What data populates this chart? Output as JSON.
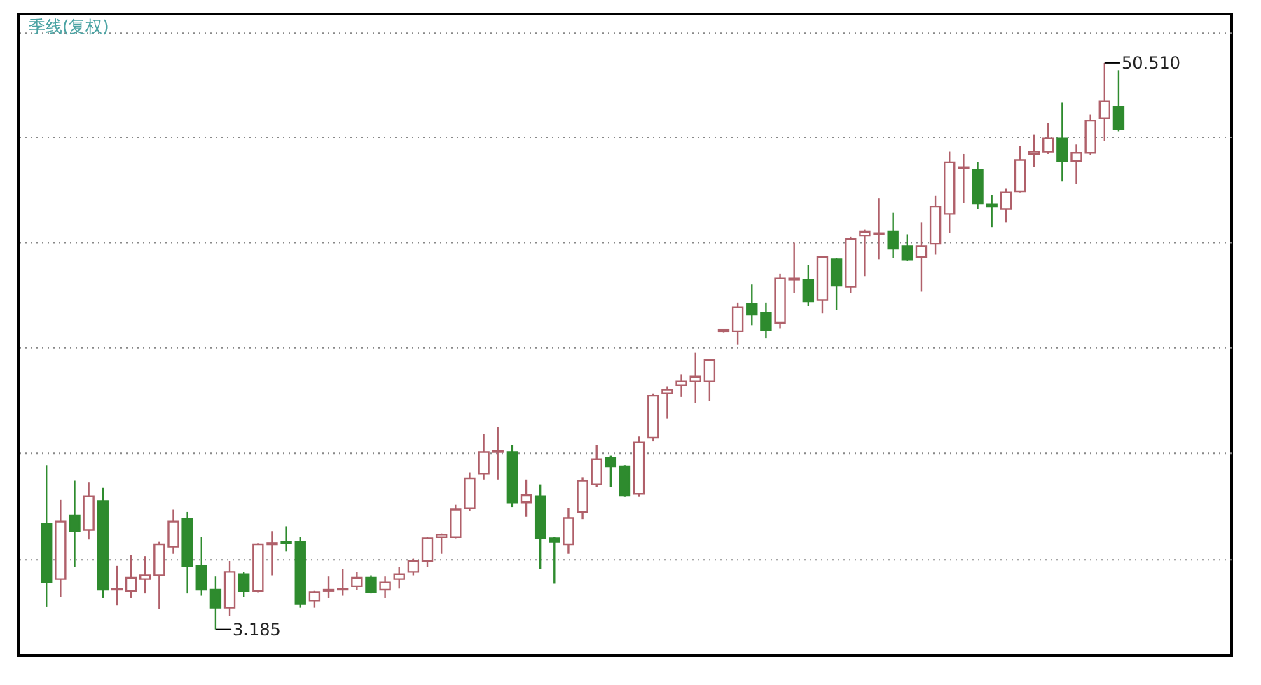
{
  "chart_data": {
    "type": "candlestick",
    "title": "季线(复权)",
    "categories": [
      null,
      null,
      null,
      null,
      null,
      null,
      null,
      null,
      null,
      null,
      null,
      null,
      null,
      null,
      null,
      null,
      null,
      null,
      null,
      null,
      null,
      null,
      null,
      null,
      null,
      null,
      null,
      null,
      null,
      null,
      null,
      null,
      null,
      null,
      null,
      null,
      null,
      null,
      null,
      null,
      null,
      null,
      null,
      null,
      null,
      null,
      null,
      null,
      null,
      null,
      null,
      null,
      null,
      null,
      null,
      null,
      null,
      null,
      null,
      null,
      null,
      null,
      null,
      null,
      null,
      null,
      null,
      null,
      null,
      null,
      null,
      null,
      null,
      null,
      null,
      null,
      null
    ],
    "ohlc": [
      [
        12.0,
        16.9,
        5.1,
        7.1
      ],
      [
        7.4,
        14.0,
        5.9,
        12.2
      ],
      [
        12.7,
        15.6,
        8.4,
        11.4
      ],
      [
        11.5,
        15.5,
        10.7,
        14.3
      ],
      [
        13.9,
        15.0,
        5.8,
        6.5
      ],
      [
        6.5,
        8.5,
        5.2,
        6.6
      ],
      [
        6.4,
        9.4,
        5.8,
        7.5
      ],
      [
        7.4,
        9.3,
        6.2,
        7.7
      ],
      [
        7.7,
        10.5,
        4.9,
        10.3
      ],
      [
        10.1,
        13.2,
        9.5,
        12.2
      ],
      [
        12.4,
        13.0,
        6.2,
        8.5
      ],
      [
        8.5,
        10.9,
        6.0,
        6.5
      ],
      [
        6.5,
        7.6,
        3.185,
        5.0
      ],
      [
        5.0,
        8.9,
        4.3,
        8.0
      ],
      [
        7.8,
        8.0,
        5.9,
        6.4
      ],
      [
        6.4,
        10.4,
        6.3,
        10.3
      ],
      [
        10.3,
        11.4,
        7.7,
        10.4
      ],
      [
        10.5,
        11.8,
        9.7,
        10.4
      ],
      [
        10.5,
        10.9,
        5.0,
        5.3
      ],
      [
        5.6,
        6.4,
        5.0,
        6.3
      ],
      [
        6.4,
        7.6,
        5.8,
        6.5
      ],
      [
        6.5,
        8.2,
        6.0,
        6.6
      ],
      [
        6.8,
        8.0,
        6.5,
        7.5
      ],
      [
        7.5,
        7.7,
        6.2,
        6.3
      ],
      [
        6.5,
        7.6,
        5.8,
        7.1
      ],
      [
        7.4,
        8.4,
        6.6,
        7.8
      ],
      [
        8.0,
        9.1,
        7.7,
        8.9
      ],
      [
        8.9,
        10.9,
        8.4,
        10.8
      ],
      [
        10.9,
        11.2,
        9.5,
        11.1
      ],
      [
        10.9,
        13.6,
        10.8,
        13.2
      ],
      [
        13.3,
        16.3,
        13.1,
        15.8
      ],
      [
        16.2,
        19.5,
        15.7,
        18.0
      ],
      [
        18.0,
        20.1,
        15.7,
        18.1
      ],
      [
        18.0,
        18.6,
        13.4,
        13.8
      ],
      [
        13.8,
        15.7,
        12.6,
        14.4
      ],
      [
        14.3,
        15.3,
        8.2,
        10.8
      ],
      [
        10.8,
        10.9,
        7.0,
        10.5
      ],
      [
        10.3,
        13.3,
        9.5,
        12.5
      ],
      [
        13.0,
        15.9,
        12.4,
        15.6
      ],
      [
        15.3,
        18.6,
        15.1,
        17.4
      ],
      [
        17.5,
        17.7,
        15.1,
        16.8
      ],
      [
        16.8,
        16.9,
        14.3,
        14.4
      ],
      [
        14.5,
        19.3,
        14.3,
        18.8
      ],
      [
        19.2,
        22.9,
        18.9,
        22.7
      ],
      [
        22.9,
        23.5,
        20.8,
        23.2
      ],
      [
        23.6,
        24.5,
        22.6,
        23.9
      ],
      [
        23.9,
        26.3,
        22.1,
        24.3
      ],
      [
        23.9,
        25.8,
        22.3,
        25.7
      ],
      [
        28.1,
        28.2,
        28.0,
        28.2
      ],
      [
        28.1,
        30.5,
        27.0,
        30.1
      ],
      [
        30.4,
        32.0,
        28.6,
        29.5
      ],
      [
        29.6,
        30.5,
        27.5,
        28.2
      ],
      [
        28.8,
        32.9,
        28.3,
        32.5
      ],
      [
        32.4,
        35.5,
        31.3,
        32.5
      ],
      [
        32.4,
        33.6,
        30.2,
        30.6
      ],
      [
        30.7,
        34.4,
        29.6,
        34.3
      ],
      [
        34.1,
        34.2,
        29.9,
        31.9
      ],
      [
        31.8,
        36.0,
        31.3,
        35.8
      ],
      [
        36.1,
        36.6,
        32.7,
        36.4
      ],
      [
        36.2,
        39.2,
        34.1,
        36.3
      ],
      [
        36.4,
        38.0,
        34.2,
        35.0
      ],
      [
        35.2,
        36.2,
        34.0,
        34.1
      ],
      [
        34.3,
        37.2,
        31.4,
        35.2
      ],
      [
        35.4,
        39.4,
        34.5,
        38.5
      ],
      [
        37.9,
        43.1,
        36.3,
        42.2
      ],
      [
        41.7,
        42.9,
        38.8,
        41.8
      ],
      [
        41.6,
        42.2,
        38.3,
        38.8
      ],
      [
        38.7,
        39.5,
        36.8,
        38.5
      ],
      [
        38.3,
        40.0,
        37.2,
        39.7
      ],
      [
        39.8,
        43.6,
        39.7,
        42.4
      ],
      [
        42.9,
        44.5,
        41.8,
        43.1
      ],
      [
        43.1,
        45.5,
        42.9,
        44.2
      ],
      [
        44.2,
        47.2,
        40.6,
        42.3
      ],
      [
        42.3,
        43.7,
        40.4,
        43.0
      ],
      [
        43.0,
        46.2,
        42.8,
        45.7
      ],
      [
        45.9,
        50.51,
        44.0,
        47.3
      ],
      [
        46.8,
        49.9,
        44.8,
        45.0
      ]
    ],
    "colors": [
      "#2e8b2e",
      "#b0606a",
      "#2e8b2e",
      "#b0606a",
      "#2e8b2e",
      "#b0606a",
      "#b0606a",
      "#b0606a",
      "#b0606a",
      "#b0606a",
      "#2e8b2e",
      "#2e8b2e",
      "#2e8b2e",
      "#b0606a",
      "#2e8b2e",
      "#b0606a",
      "#b0606a",
      "#2e8b2e",
      "#2e8b2e",
      "#b0606a",
      "#b0606a",
      "#b0606a",
      "#b0606a",
      "#2e8b2e",
      "#b0606a",
      "#b0606a",
      "#b0606a",
      "#b0606a",
      "#b0606a",
      "#b0606a",
      "#b0606a",
      "#b0606a",
      "#b0606a",
      "#2e8b2e",
      "#b0606a",
      "#2e8b2e",
      "#2e8b2e",
      "#b0606a",
      "#b0606a",
      "#b0606a",
      "#2e8b2e",
      "#2e8b2e",
      "#b0606a",
      "#b0606a",
      "#b0606a",
      "#b0606a",
      "#b0606a",
      "#b0606a",
      "#b0606a",
      "#b0606a",
      "#2e8b2e",
      "#2e8b2e",
      "#b0606a",
      "#b0606a",
      "#2e8b2e",
      "#b0606a",
      "#2e8b2e",
      "#b0606a",
      "#b0606a",
      "#b0606a",
      "#2e8b2e",
      "#2e8b2e",
      "#b0606a",
      "#b0606a",
      "#b0606a",
      "#b0606a",
      "#2e8b2e",
      "#2e8b2e",
      "#b0606a",
      "#b0606a",
      "#b0606a",
      "#b0606a",
      "#2e8b2e",
      "#b0606a",
      "#b0606a",
      "#b0606a",
      "#2e8b2e"
    ],
    "relative": false,
    "ylim": [
      1.0,
      54.6
    ],
    "yticks": [
      {
        "value": 9.0,
        "label": null
      },
      {
        "value": 17.9,
        "label": null
      },
      {
        "value": 26.7,
        "label": null
      },
      {
        "value": 35.5,
        "label": null
      },
      {
        "value": 44.3,
        "label": null
      },
      {
        "value": 53.0,
        "label": null
      }
    ],
    "grid": "y",
    "tick_labels": false,
    "annotations": [
      "50.510",
      "3.185"
    ]
  }
}
